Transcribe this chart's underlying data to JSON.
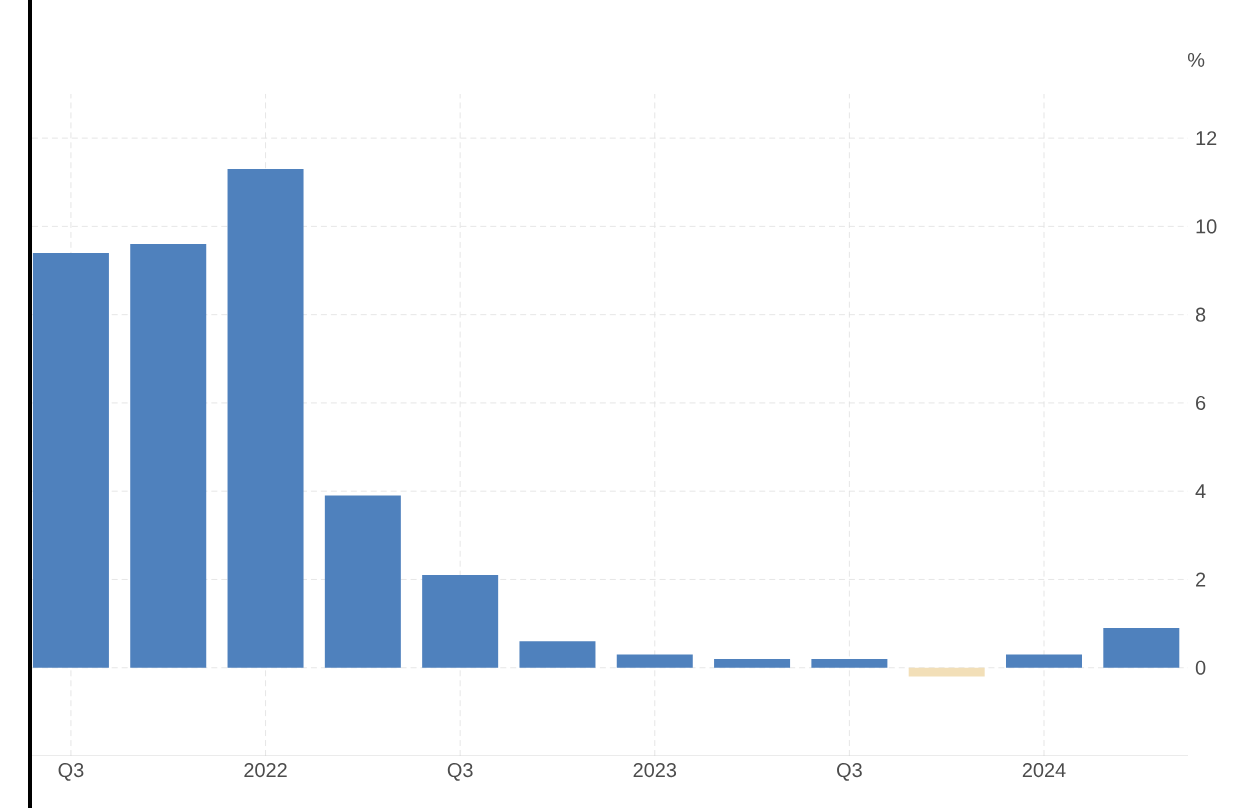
{
  "chart_data": {
    "type": "bar",
    "ylabel": "%",
    "categories": [
      "Q3",
      null,
      "2022",
      null,
      "Q3",
      null,
      "2023",
      null,
      "Q3",
      null,
      "2024",
      null
    ],
    "values": [
      9.4,
      9.6,
      11.3,
      3.9,
      2.1,
      0.6,
      0.3,
      0.2,
      0.2,
      -0.2,
      0.3,
      0.9
    ],
    "colors": [
      "#4f81bd",
      "#4f81bd",
      "#4f81bd",
      "#4f81bd",
      "#4f81bd",
      "#4f81bd",
      "#4f81bd",
      "#4f81bd",
      "#4f81bd",
      "#f2dfb8",
      "#4f81bd",
      "#4f81bd"
    ],
    "ylim": [
      -2,
      13
    ],
    "yticks": [
      0,
      2,
      4,
      6,
      8,
      10,
      12
    ],
    "grid": true
  }
}
